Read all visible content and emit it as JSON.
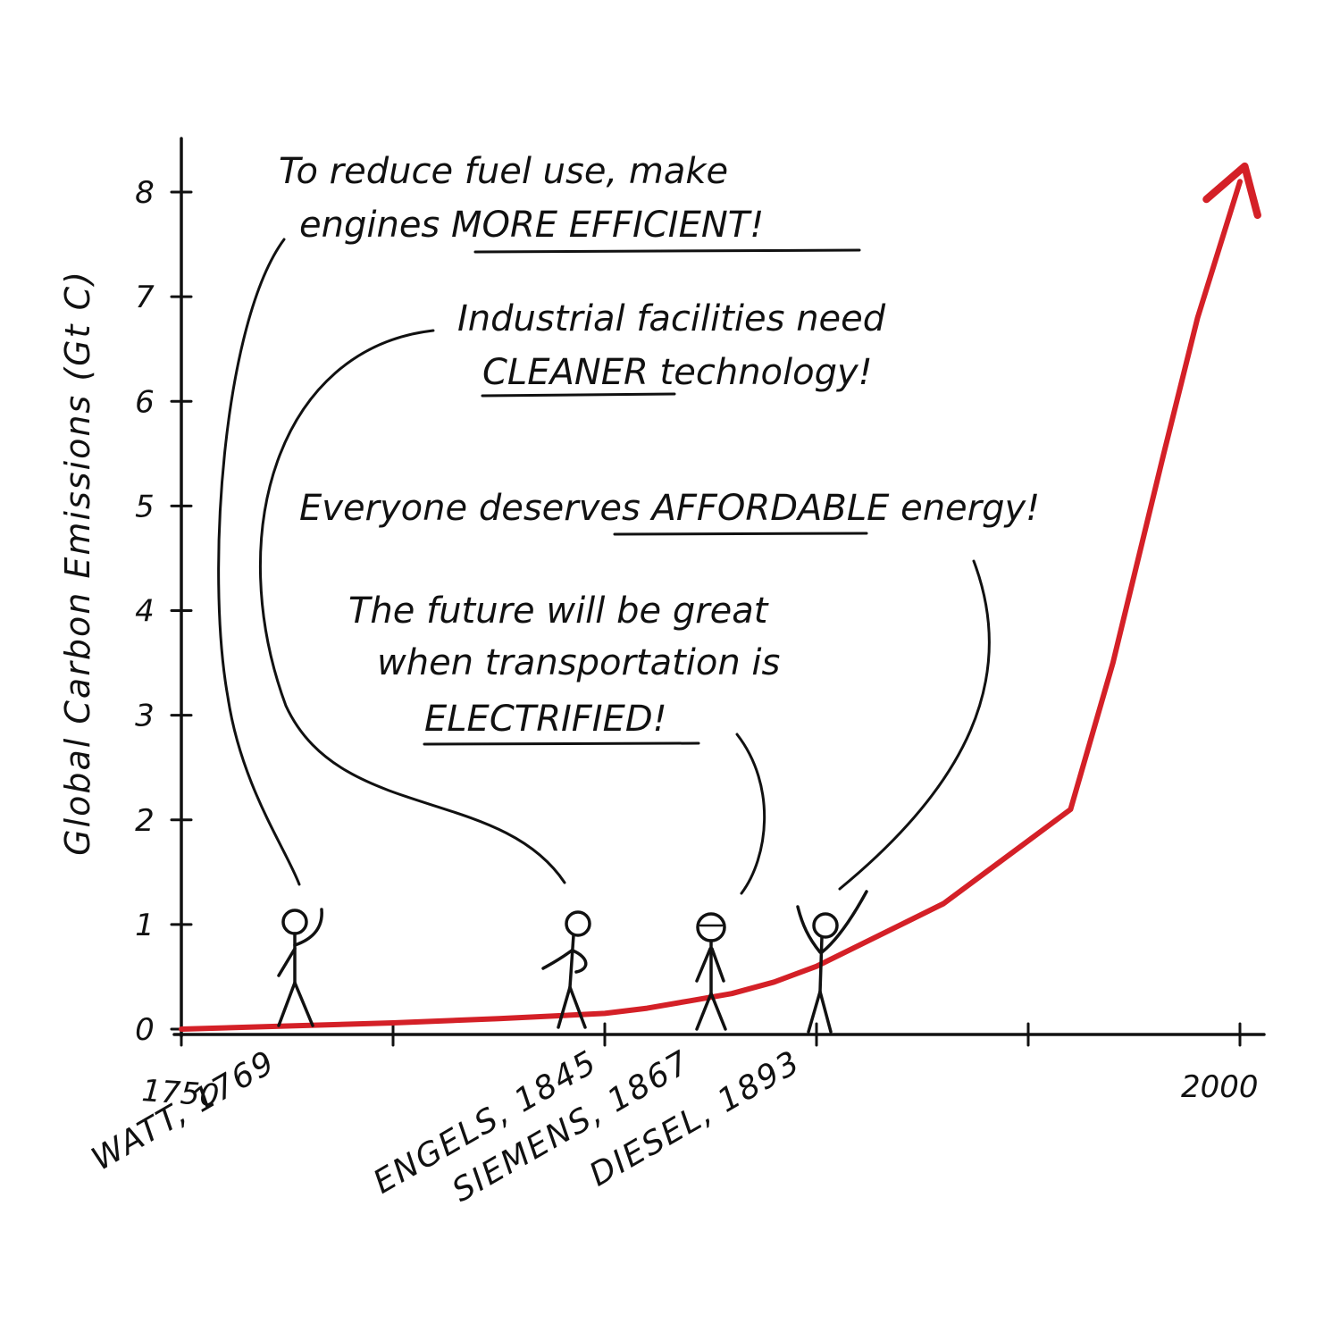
{
  "chart_data": {
    "type": "line",
    "title": "",
    "xlabel": "",
    "ylabel": "Global Carbon Emissions (Gt C)",
    "xlim": [
      1750,
      2000
    ],
    "ylim": [
      0,
      8
    ],
    "yticks": [
      0,
      1,
      2,
      3,
      4,
      5,
      6,
      7,
      8
    ],
    "xticks": [
      1750,
      1775,
      1800,
      1825,
      1850,
      1875,
      1900,
      1925,
      1950,
      1975,
      2000
    ],
    "xtick_labels": [
      {
        "x": 1750,
        "label": "1750"
      },
      {
        "x": 2000,
        "label": "2000"
      }
    ],
    "series": [
      {
        "color": "#d42027",
        "arrow_end": true,
        "x": [
          1750,
          1775,
          1800,
          1825,
          1850,
          1860,
          1870,
          1880,
          1890,
          1900,
          1910,
          1920,
          1930,
          1940,
          1950,
          1960,
          1970,
          1982,
          1990,
          2000
        ],
        "y": [
          0.0,
          0.03,
          0.06,
          0.1,
          0.15,
          0.2,
          0.27,
          0.34,
          0.45,
          0.6,
          0.8,
          1.0,
          1.2,
          1.5,
          1.8,
          2.1,
          3.5,
          5.5,
          6.8,
          8.1
        ]
      }
    ],
    "annotations": [
      {
        "x": 1769,
        "label": "WATT, 1769",
        "quote": [
          "To reduce fuel use, make",
          "engines MORE EFFICIENT!"
        ],
        "emphasis": "MORE EFFICIENT"
      },
      {
        "x": 1845,
        "label": "ENGELS, 1845",
        "quote": [
          "Industrial facilities need",
          "CLEANER technology!"
        ],
        "emphasis": "CLEANER"
      },
      {
        "x": 1867,
        "label": "SIEMENS, 1867",
        "quote": [
          "The future will be great",
          "when transportation is",
          "ELECTRIFIED!"
        ],
        "emphasis": "ELECTRIFIED"
      },
      {
        "x": 1893,
        "label": "DIESEL, 1893",
        "quote": [
          "Everyone deserves AFFORDABLE energy!"
        ],
        "emphasis": "AFFORDABLE"
      }
    ],
    "grid": false,
    "legend": "none"
  }
}
